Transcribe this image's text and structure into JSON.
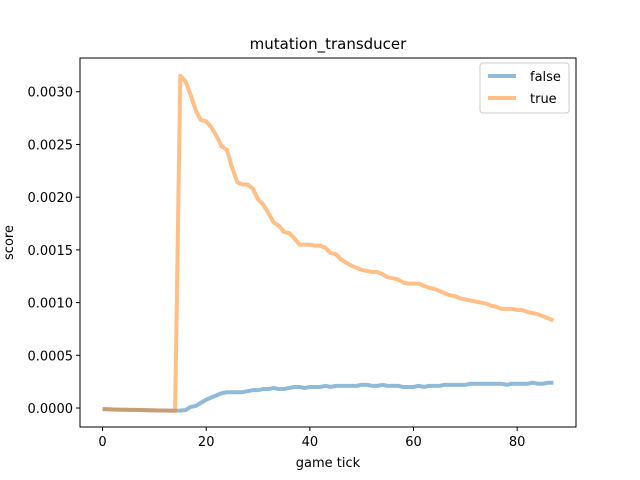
{
  "chart_data": {
    "type": "line",
    "title": "mutation_transducer",
    "xlabel": "game tick",
    "ylabel": "score",
    "xlim": [
      -4.35,
      91.35
    ],
    "ylim": [
      -0.00018,
      0.00332
    ],
    "xticks": [
      0,
      20,
      40,
      60,
      80
    ],
    "xtick_labels": [
      "0",
      "20",
      "40",
      "60",
      "80"
    ],
    "yticks": [
      0,
      0.0005,
      0.001,
      0.0015,
      0.002,
      0.0025,
      0.003
    ],
    "ytick_labels": [
      "0.0000",
      "0.0005",
      "0.0010",
      "0.0015",
      "0.0020",
      "0.0025",
      "0.0030"
    ],
    "grid": false,
    "legend_position": "top-right",
    "legend": [
      "false",
      "true"
    ],
    "series": [
      {
        "name": "false",
        "color": "#1f77b4",
        "x": [
          0,
          1,
          2,
          3,
          4,
          5,
          6,
          7,
          8,
          9,
          10,
          11,
          12,
          13,
          14,
          15,
          16,
          17,
          18,
          19,
          20,
          21,
          22,
          23,
          24,
          25,
          26,
          27,
          28,
          29,
          30,
          31,
          32,
          33,
          34,
          35,
          36,
          37,
          38,
          39,
          40,
          41,
          42,
          43,
          44,
          45,
          46,
          47,
          48,
          49,
          50,
          51,
          52,
          53,
          54,
          55,
          56,
          57,
          58,
          59,
          60,
          61,
          62,
          63,
          64,
          65,
          66,
          67,
          68,
          69,
          70,
          71,
          72,
          73,
          74,
          75,
          76,
          77,
          78,
          79,
          80,
          81,
          82,
          83,
          84,
          85,
          86,
          87
        ],
        "y": [
          -1e-05,
          -1.2e-05,
          -1.4e-05,
          -1.5e-05,
          -1.6e-05,
          -1.7e-05,
          -1.8e-05,
          -1.9e-05,
          -2e-05,
          -2.1e-05,
          -2.2e-05,
          -2.3e-05,
          -2.4e-05,
          -2.5e-05,
          -2.5e-05,
          -2.4e-05,
          -2e-05,
          1e-05,
          2e-05,
          5e-05,
          8e-05,
          0.0001,
          0.00012,
          0.00014,
          0.00015,
          0.00015,
          0.00015,
          0.00015,
          0.00016,
          0.00017,
          0.00017,
          0.00018,
          0.00018,
          0.00019,
          0.00018,
          0.00018,
          0.00019,
          0.0002,
          0.0002,
          0.00019,
          0.0002,
          0.0002,
          0.0002,
          0.00021,
          0.0002,
          0.00021,
          0.00021,
          0.00021,
          0.00021,
          0.00021,
          0.00022,
          0.00022,
          0.00021,
          0.00021,
          0.00022,
          0.00021,
          0.00021,
          0.00021,
          0.0002,
          0.0002,
          0.0002,
          0.00021,
          0.0002,
          0.00021,
          0.00021,
          0.00021,
          0.00022,
          0.00022,
          0.00022,
          0.00022,
          0.00022,
          0.00023,
          0.00023,
          0.00023,
          0.00023,
          0.00023,
          0.00023,
          0.00023,
          0.00022,
          0.00023,
          0.00023,
          0.00023,
          0.00023,
          0.00024,
          0.00023,
          0.00023,
          0.00024,
          0.00024
        ]
      },
      {
        "name": "true",
        "color": "#ff7f0e",
        "x": [
          0,
          1,
          2,
          3,
          4,
          5,
          6,
          7,
          8,
          9,
          10,
          11,
          12,
          13,
          14,
          15,
          16,
          17,
          18,
          19,
          20,
          21,
          22,
          23,
          24,
          25,
          26,
          27,
          28,
          29,
          30,
          31,
          32,
          33,
          34,
          35,
          36,
          37,
          38,
          39,
          40,
          41,
          42,
          43,
          44,
          45,
          46,
          47,
          48,
          49,
          50,
          51,
          52,
          53,
          54,
          55,
          56,
          57,
          58,
          59,
          60,
          61,
          62,
          63,
          64,
          65,
          66,
          67,
          68,
          69,
          70,
          71,
          72,
          73,
          74,
          75,
          76,
          77,
          78,
          79,
          80,
          81,
          82,
          83,
          84,
          85,
          86,
          87
        ],
        "y": [
          -1e-05,
          -1.2e-05,
          -1.4e-05,
          -1.5e-05,
          -1.6e-05,
          -1.7e-05,
          -1.8e-05,
          -1.9e-05,
          -2e-05,
          -2.1e-05,
          -2.2e-05,
          -2.3e-05,
          -2.4e-05,
          -2.5e-05,
          -2.5e-05,
          0.00315,
          0.0031,
          0.00297,
          0.00282,
          0.00273,
          0.00272,
          0.00266,
          0.00258,
          0.00248,
          0.00245,
          0.00228,
          0.00214,
          0.00212,
          0.00212,
          0.00208,
          0.00198,
          0.00193,
          0.00185,
          0.00176,
          0.00173,
          0.00167,
          0.00166,
          0.00161,
          0.00155,
          0.00155,
          0.00155,
          0.00154,
          0.00154,
          0.00152,
          0.00147,
          0.00146,
          0.00141,
          0.00138,
          0.00135,
          0.00133,
          0.00131,
          0.0013,
          0.00129,
          0.00129,
          0.00127,
          0.00124,
          0.00123,
          0.00122,
          0.00119,
          0.00118,
          0.00118,
          0.00118,
          0.00116,
          0.00114,
          0.00113,
          0.00111,
          0.00109,
          0.00107,
          0.00106,
          0.00104,
          0.00103,
          0.00102,
          0.00101,
          0.001,
          0.00099,
          0.00097,
          0.00096,
          0.00094,
          0.00094,
          0.00094,
          0.00093,
          0.00093,
          0.00091,
          0.0009,
          0.00089,
          0.00087,
          0.00085,
          0.00083
        ]
      }
    ]
  }
}
